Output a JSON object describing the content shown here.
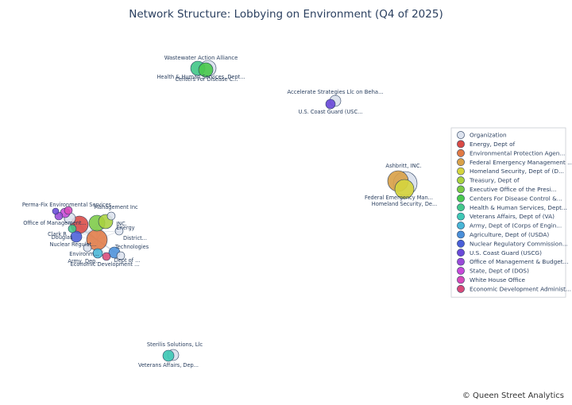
{
  "chart_data": {
    "type": "scatter",
    "subtype": "network",
    "title": "Network Structure: Lobbying on Environment (Q4 of 2025)",
    "xlabel": "",
    "ylabel": "",
    "grid": false,
    "axes_visible": false,
    "legend_placement": "right",
    "legend": [
      {
        "name": "Organization",
        "color": "#dde3ee"
      },
      {
        "name": "Energy, Dept of",
        "color": "#d94a45"
      },
      {
        "name": "Environmental Protection Agen...",
        "color": "#e07a45"
      },
      {
        "name": "Federal Emergency Management ...",
        "color": "#d9a24a"
      },
      {
        "name": "Homeland Security, Dept of (D...",
        "color": "#d5d43e"
      },
      {
        "name": "Treasury, Dept of",
        "color": "#aad23f"
      },
      {
        "name": "Executive Office of the Presi...",
        "color": "#7ccb45"
      },
      {
        "name": "Centers For Disease Control &...",
        "color": "#4bc94e"
      },
      {
        "name": "Health & Human Services, Dept...",
        "color": "#44c88a"
      },
      {
        "name": "Veterans Affairs, Dept of (VA)",
        "color": "#3fc9b5"
      },
      {
        "name": "Army, Dept of (Corps of Engin...",
        "color": "#48b6d6"
      },
      {
        "name": "Agriculture, Dept of (USDA)",
        "color": "#4a8fd9"
      },
      {
        "name": "Nuclear Regulatory Commission...",
        "color": "#4a5fd8"
      },
      {
        "name": "U.S. Coast Guard (USCG)",
        "color": "#6a4ad8"
      },
      {
        "name": "Office of Management & Budget...",
        "color": "#9a4ad8"
      },
      {
        "name": "State, Dept of (DOS)",
        "color": "#c94ad8"
      },
      {
        "name": "White House Office",
        "color": "#d84ab8"
      },
      {
        "name": "Economic Development Administ...",
        "color": "#d84a78"
      }
    ],
    "clusters": [
      {
        "organization": "Wastewater Action Alliance",
        "agencies": [
          {
            "label": "Health & Human Services, Dept...",
            "group": "Health & Human Services, Dept..."
          },
          {
            "label": "Centers For Disease C...",
            "group": "Centers For Disease Control &..."
          }
        ]
      },
      {
        "organization": "Accelerate Strategies Llc on Beha...",
        "agencies": [
          {
            "label": "U.S. Coast Guard (USC...",
            "group": "U.S. Coast Guard (USCG)"
          }
        ]
      },
      {
        "organization": "Ashbritt, INC.",
        "agencies": [
          {
            "label": "Federal Emergency Man...",
            "group": "Federal Emergency Management ..."
          },
          {
            "label": "Homeland Security, De...",
            "group": "Homeland Security, Dept of (D..."
          }
        ]
      },
      {
        "organization": "Sterilis Solutions, Llc",
        "agencies": [
          {
            "label": "Veterans Affairs, Dep...",
            "group": "Veterans Affairs, Dept of (VA)"
          }
        ]
      }
    ],
    "dense_cluster_labels": [
      "Perma-Fix Environmental Services",
      "Management Inc",
      "Office of Management...",
      "Clark R",
      "Douglas",
      "Nuclear Regulat...",
      "Environm...",
      "Army, Dep...",
      "Economic Development ...",
      "Technologies",
      "Energy",
      "District...",
      "INC.",
      "Dept of ..."
    ]
  },
  "credit": "© Queen Street Analytics"
}
